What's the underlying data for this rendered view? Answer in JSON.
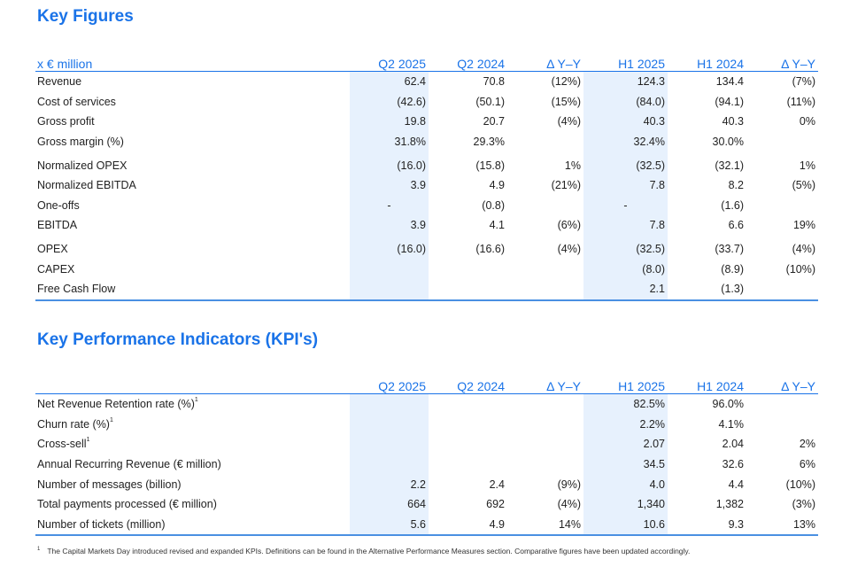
{
  "key_figures": {
    "title": "Key Figures",
    "header": [
      "x € million",
      "Q2 2025",
      "Q2 2024",
      "Δ Y–Y",
      "H1 2025",
      "H1 2024",
      "Δ Y–Y"
    ],
    "rows": [
      {
        "label": "Revenue",
        "values": [
          "62.4",
          "70.8",
          "(12%)",
          "124.3",
          "134.4",
          "(7%)"
        ]
      },
      {
        "label": "Cost of services",
        "values": [
          "(42.6)",
          "(50.1)",
          "(15%)",
          "(84.0)",
          "(94.1)",
          "(11%)"
        ]
      },
      {
        "label": "Gross profit",
        "values": [
          "19.8",
          "20.7",
          "(4%)",
          "40.3",
          "40.3",
          "0%"
        ]
      },
      {
        "label": "Gross margin (%)",
        "values": [
          "31.8%",
          "29.3%",
          "",
          "32.4%",
          "30.0%",
          ""
        ]
      },
      {
        "label": "Normalized OPEX",
        "values": [
          "(16.0)",
          "(15.8)",
          "1%",
          "(32.5)",
          "(32.1)",
          "1%"
        ]
      },
      {
        "label": "Normalized EBITDA",
        "values": [
          "3.9",
          "4.9",
          "(21%)",
          "7.8",
          "8.2",
          "(5%)"
        ]
      },
      {
        "label": "One-offs",
        "values": [
          "-",
          "(0.8)",
          "",
          "-",
          "(1.6)",
          ""
        ]
      },
      {
        "label": "EBITDA",
        "values": [
          "3.9",
          "4.1",
          "(6%)",
          "7.8",
          "6.6",
          "19%"
        ]
      },
      {
        "label": "OPEX",
        "values": [
          "(16.0)",
          "(16.6)",
          "(4%)",
          "(32.5)",
          "(33.7)",
          "(4%)"
        ]
      },
      {
        "label": "CAPEX",
        "values": [
          "",
          "",
          "",
          "(8.0)",
          "(8.9)",
          "(10%)"
        ]
      },
      {
        "label": "Free Cash Flow",
        "values": [
          "",
          "",
          "",
          "2.1",
          "(1.3)",
          ""
        ]
      }
    ]
  },
  "kpis": {
    "title": "Key Performance Indicators (KPI's)",
    "header": [
      "",
      "Q2 2025",
      "Q2 2024",
      "Δ Y–Y",
      "H1 2025",
      "H1 2024",
      "Δ Y–Y"
    ],
    "rows": [
      {
        "label": "Net Revenue Retention rate (%)",
        "sup": "1",
        "values": [
          "",
          "",
          "",
          "82.5%",
          "96.0%",
          ""
        ]
      },
      {
        "label": "Churn rate (%)",
        "sup": "1",
        "values": [
          "",
          "",
          "",
          "2.2%",
          "4.1%",
          ""
        ]
      },
      {
        "label": "Cross-sell",
        "sup": "1",
        "values": [
          "",
          "",
          "",
          "2.07",
          "2.04",
          "2%"
        ]
      },
      {
        "label": "Annual Recurring Revenue (€ million)",
        "sup": "",
        "values": [
          "",
          "",
          "",
          "34.5",
          "32.6",
          "6%"
        ]
      },
      {
        "label": "Number of messages (billion)",
        "sup": "",
        "values": [
          "2.2",
          "2.4",
          "(9%)",
          "4.0",
          "4.4",
          "(10%)"
        ]
      },
      {
        "label": "Total payments processed (€ million)",
        "sup": "",
        "values": [
          "664",
          "692",
          "(4%)",
          "1,340",
          "1,382",
          "(3%)"
        ]
      },
      {
        "label": "Number of tickets (million)",
        "sup": "",
        "values": [
          "5.6",
          "4.9",
          "14%",
          "10.6",
          "9.3",
          "13%"
        ]
      }
    ]
  },
  "footnote": {
    "mark": "1",
    "text": "The Capital Markets Day introduced revised and expanded KPIs. Definitions can be found in the Alternative Performance Measures section. Comparative figures have been updated accordingly."
  }
}
